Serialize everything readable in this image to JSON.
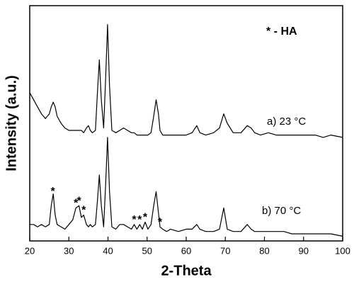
{
  "chart_data": {
    "type": "line",
    "xlabel": "2-Theta",
    "ylabel": "Intensity (a.u.)",
    "xlim": [
      20,
      100
    ],
    "xticks": [
      20,
      30,
      40,
      50,
      60,
      70,
      80,
      90,
      100
    ],
    "ylim": [
      0,
      100
    ],
    "x": [
      20,
      21,
      22,
      23,
      24,
      25,
      25.5,
      26,
      26.5,
      27,
      28,
      29,
      30,
      31,
      31.8,
      32.6,
      33.2,
      33.8,
      34.5,
      35,
      35.5,
      36,
      36.8,
      37.3,
      37.8,
      38.3,
      38.9,
      39.4,
      39.9,
      40.4,
      41,
      42,
      43,
      44,
      45,
      46,
      46.7,
      47.4,
      48.1,
      48.8,
      49.5,
      50.2,
      51,
      51.7,
      52.3,
      52.9,
      53.3,
      54,
      55,
      56,
      58,
      60,
      61.5,
      62.7,
      63.5,
      65,
      67,
      68.5,
      69.6,
      70.5,
      72,
      74,
      75.6,
      76.6,
      77.5,
      79,
      81,
      83,
      85,
      87,
      89,
      91,
      93,
      95,
      97,
      100
    ],
    "series": [
      {
        "name": "a) 23 °C",
        "color": "#000000",
        "values": [
          63,
          60,
          57,
          54,
          52,
          54,
          57,
          59,
          57,
          53,
          50,
          48,
          47,
          47,
          47,
          47,
          47,
          46,
          48,
          49,
          47,
          46,
          47,
          63,
          77,
          60,
          48,
          69,
          92,
          66,
          47,
          46,
          47,
          48,
          47,
          46,
          46,
          45,
          45,
          45,
          45,
          45,
          46,
          53,
          60,
          54,
          47,
          45,
          45,
          45,
          45,
          45,
          46,
          49,
          46,
          45,
          46,
          48,
          54,
          50,
          46,
          46,
          49,
          48,
          46,
          45,
          46,
          45,
          45,
          45,
          45,
          45,
          45,
          44,
          45,
          44
        ]
      },
      {
        "name": "b) 70 °C",
        "color": "#000000",
        "values": [
          7,
          7,
          6,
          7,
          6,
          7,
          15,
          20,
          11,
          7,
          6,
          5,
          7,
          9,
          14,
          15,
          10,
          11,
          7,
          6,
          7,
          6,
          7,
          17,
          28,
          15,
          6,
          24,
          44,
          21,
          6,
          5,
          7,
          7,
          6,
          5,
          7,
          5,
          7,
          5,
          8,
          5,
          7,
          15,
          21,
          12,
          6,
          5,
          4,
          5,
          4,
          5,
          5,
          7,
          5,
          4,
          4,
          5,
          14,
          5,
          4,
          4,
          7,
          5,
          4,
          4,
          4,
          4,
          4,
          3,
          3,
          3,
          3,
          3,
          3,
          2
        ]
      }
    ],
    "legend_note": "* - HA",
    "peak_marker": "*",
    "peak_positions": [
      25.9,
      31.8,
      32.6,
      33.8,
      46.7,
      48.1,
      49.5,
      53.3
    ]
  }
}
